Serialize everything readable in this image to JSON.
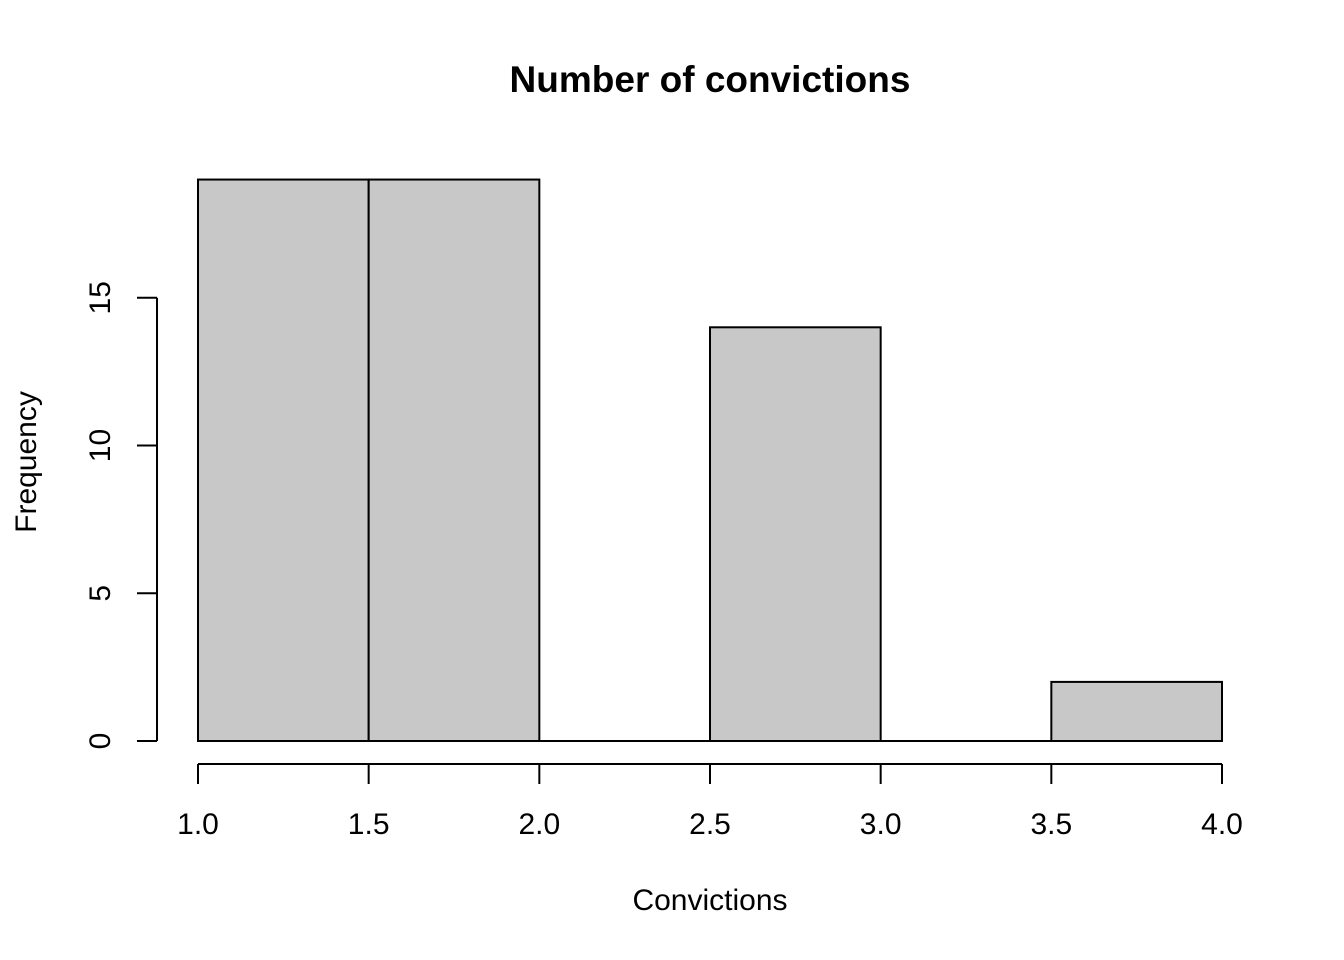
{
  "chart_data": {
    "type": "bar",
    "subtype": "histogram",
    "title": "Number of convictions",
    "xlabel": "Convictions",
    "ylabel": "Frequency",
    "bins": [
      {
        "start": 1.0,
        "end": 1.5,
        "count": 19
      },
      {
        "start": 1.5,
        "end": 2.0,
        "count": 19
      },
      {
        "start": 2.0,
        "end": 2.5,
        "count": 0
      },
      {
        "start": 2.5,
        "end": 3.0,
        "count": 14
      },
      {
        "start": 3.0,
        "end": 3.5,
        "count": 0
      },
      {
        "start": 3.5,
        "end": 4.0,
        "count": 2
      }
    ],
    "xlim": [
      1.0,
      4.0
    ],
    "ylim": [
      0,
      19
    ],
    "x_ticks": [
      "1.0",
      "1.5",
      "2.0",
      "2.5",
      "3.0",
      "3.5",
      "4.0"
    ],
    "y_ticks": [
      "0",
      "5",
      "10",
      "15"
    ],
    "bar_fill": "#c8c8c8",
    "bar_stroke": "#000000",
    "grid": false,
    "legend": "none"
  }
}
